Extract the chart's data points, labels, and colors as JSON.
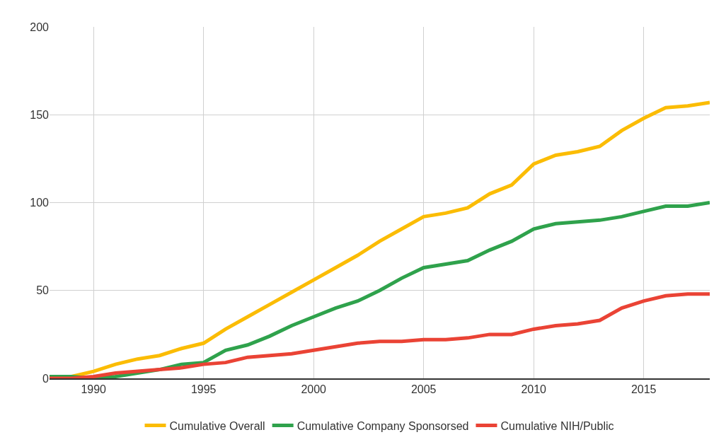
{
  "chart_data": {
    "type": "line",
    "x": [
      1988,
      1989,
      1990,
      1991,
      1992,
      1993,
      1994,
      1995,
      1996,
      1997,
      1998,
      1999,
      2000,
      2001,
      2002,
      2003,
      2004,
      2005,
      2006,
      2007,
      2008,
      2009,
      2010,
      2011,
      2012,
      2013,
      2014,
      2015,
      2016,
      2017,
      2018
    ],
    "series": [
      {
        "name": "Cumulative Overall",
        "color": "#fbbc04",
        "values": [
          0,
          1,
          4,
          8,
          11,
          13,
          17,
          20,
          28,
          35,
          42,
          49,
          56,
          63,
          70,
          78,
          85,
          92,
          94,
          97,
          105,
          110,
          122,
          127,
          129,
          132,
          141,
          148,
          154,
          155,
          157
        ]
      },
      {
        "name": "Cumulative Company Sponsorsed",
        "color": "#2fa24c",
        "values": [
          1,
          1,
          0,
          1,
          3,
          5,
          8,
          9,
          16,
          19,
          24,
          30,
          35,
          40,
          44,
          50,
          57,
          63,
          65,
          67,
          73,
          78,
          85,
          88,
          89,
          90,
          92,
          95,
          98,
          98,
          100
        ]
      },
      {
        "name": "Cumulative NIH/Public",
        "color": "#ea4335",
        "values": [
          0,
          0,
          1,
          3,
          4,
          5,
          6,
          8,
          9,
          12,
          13,
          14,
          16,
          18,
          20,
          21,
          21,
          22,
          22,
          23,
          25,
          25,
          28,
          30,
          31,
          33,
          40,
          44,
          47,
          48,
          48
        ]
      }
    ],
    "xlim": [
      1988,
      2018
    ],
    "xticks": [
      1990,
      1995,
      2000,
      2005,
      2010,
      2015
    ],
    "ylim": [
      0,
      200
    ],
    "yticks": [
      0,
      50,
      100,
      150,
      200
    ],
    "grid": true,
    "legend": "bottom",
    "marker": "none",
    "line_style": "solid"
  }
}
